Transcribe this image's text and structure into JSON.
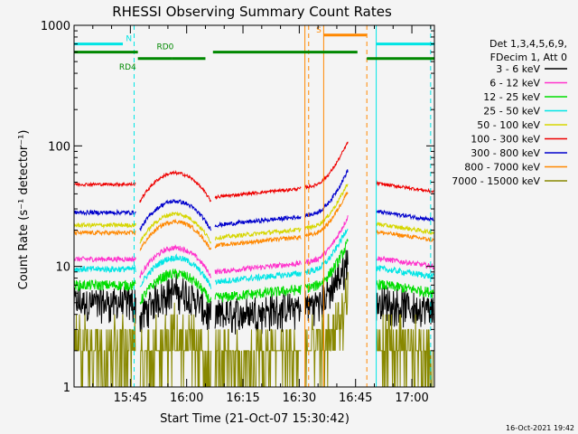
{
  "chart_data": {
    "type": "line",
    "title": "RHESSI Observing Summary Count Rates",
    "xlabel": "Start Time (21-Oct-07 15:30:42)",
    "ylabel": "Count Rate (s⁻¹ detector⁻¹)",
    "yscale": "log",
    "ylim": [
      1,
      1000
    ],
    "xlim_min": [
      0,
      96
    ],
    "x_ticks": [
      {
        "label": "15:45",
        "min": 15
      },
      {
        "label": "16:00",
        "min": 30
      },
      {
        "label": "16:15",
        "min": 45
      },
      {
        "label": "16:30",
        "min": 60
      },
      {
        "label": "16:45",
        "min": 75
      },
      {
        "label": "17:00",
        "min": 90
      }
    ],
    "y_ticks": [
      {
        "label": "1",
        "value": 1
      },
      {
        "label": "10",
        "value": 10
      },
      {
        "label": "100",
        "value": 100
      },
      {
        "label": "1000",
        "value": 1000
      }
    ],
    "legend_header": [
      "Det 1,3,4,5,6,9,",
      "FDecim 1, Att 0"
    ],
    "legend_position": "right",
    "series": [
      {
        "name": "3 - 6 keV",
        "color": "#000000",
        "base": 5.0,
        "noise": 0.12
      },
      {
        "name": "6 - 12 keV",
        "color": "#ff33cc",
        "base": 11.5,
        "noise": 0.05
      },
      {
        "name": "12 - 25 keV",
        "color": "#00dd00",
        "base": 7.0,
        "noise": 0.1
      },
      {
        "name": "25 - 50 keV",
        "color": "#00e5e5",
        "base": 9.5,
        "noise": 0.06
      },
      {
        "name": "50 - 100 keV",
        "color": "#d6d600",
        "base": 22.0,
        "noise": 0.04
      },
      {
        "name": "100 - 300 keV",
        "color": "#ee0000",
        "base": 48.0,
        "noise": 0.03
      },
      {
        "name": "300 - 800 keV",
        "color": "#0000cc",
        "base": 28.0,
        "noise": 0.04
      },
      {
        "name": "800 - 7000 keV",
        "color": "#ff8800",
        "base": 19.0,
        "noise": 0.04
      },
      {
        "name": "7000 - 15000 keV",
        "color": "#888800",
        "base": 2.0,
        "noise": 0.35
      }
    ],
    "data_gaps_min": [
      [
        16.5,
        17.5
      ],
      [
        36.5,
        37.5
      ],
      [
        60.5,
        61.5
      ],
      [
        73.0,
        80.5
      ]
    ],
    "flag_bars": [
      {
        "label": "N",
        "color": "#00e5e5",
        "y": 700,
        "segments": [
          [
            0,
            13
          ],
          [
            80.5,
            96
          ]
        ],
        "label_at": 13.8
      },
      {
        "label": "S",
        "color": "#ff8800",
        "y": 830,
        "segments": [
          [
            66.5,
            78
          ]
        ],
        "label_at": 64.5
      },
      {
        "label": "RD0",
        "color": "#008800",
        "y": 600,
        "segments": [
          [
            0,
            17
          ],
          [
            37,
            75.5
          ]
        ],
        "label_at": 22
      },
      {
        "label": "RD4",
        "color": "#008800",
        "y": 530,
        "segments": [
          [
            17,
            26
          ],
          [
            26,
            35
          ],
          [
            78,
            96
          ]
        ],
        "label_at": 12
      }
    ],
    "vlines": [
      {
        "min": 16,
        "color": "#00e5e5",
        "dashed": true
      },
      {
        "min": 80.5,
        "color": "#00e5e5",
        "dashed": false
      },
      {
        "min": 95,
        "color": "#00e5e5",
        "dashed": true
      },
      {
        "min": 61.5,
        "color": "#ff8800",
        "dashed": false
      },
      {
        "min": 62.5,
        "color": "#ff8800",
        "dashed": true
      },
      {
        "min": 66.5,
        "color": "#ff8800",
        "dashed": false
      },
      {
        "min": 78,
        "color": "#ff8800",
        "dashed": true
      }
    ],
    "footer": "16-Oct-2021 19:42"
  }
}
